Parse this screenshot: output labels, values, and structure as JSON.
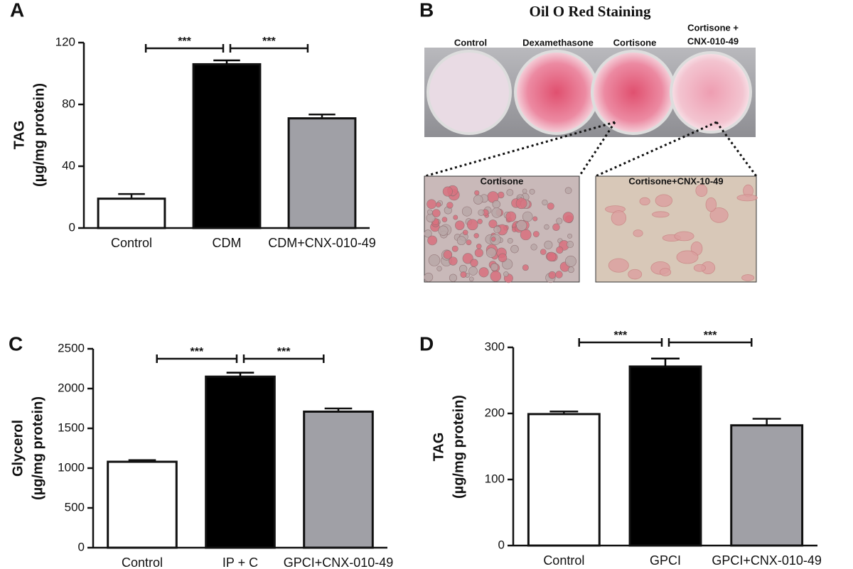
{
  "chart_data": [
    {
      "type": "bar",
      "panel_label": "A",
      "ylabel": [
        "TAG",
        "(µg/mg protein)"
      ],
      "categories": [
        "Control",
        "CDM",
        "CDM+CNX-010-49"
      ],
      "values": [
        19,
        106,
        71
      ],
      "errors": [
        3,
        2.5,
        2.5
      ],
      "colors": [
        "#ffffff",
        "#000000",
        "#a0a0a6"
      ],
      "ylim": [
        0,
        120
      ],
      "yticks": [
        0,
        40,
        80,
        120
      ],
      "significance": [
        {
          "label": "***",
          "pair": [
            0,
            1
          ]
        },
        {
          "label": "***",
          "pair": [
            1,
            2
          ]
        }
      ]
    },
    {
      "type": "bar",
      "panel_label": "C",
      "ylabel": [
        "Glycerol",
        "(µg/mg protein)"
      ],
      "categories": [
        "Control",
        "IP + C",
        "GPCI+CNX-010-49"
      ],
      "values": [
        1080,
        2150,
        1710
      ],
      "errors": [
        20,
        50,
        40
      ],
      "colors": [
        "#ffffff",
        "#000000",
        "#a0a0a6"
      ],
      "ylim": [
        0,
        2500
      ],
      "yticks": [
        0,
        500,
        1000,
        1500,
        2000,
        2500
      ],
      "significance": [
        {
          "label": "***",
          "pair": [
            0,
            1
          ]
        },
        {
          "label": "***",
          "pair": [
            1,
            2
          ]
        }
      ]
    },
    {
      "type": "bar",
      "panel_label": "D",
      "ylabel": [
        "TAG",
        "(µg/mg protein)"
      ],
      "categories": [
        "Control",
        "GPCI",
        "GPCI+CNX-010-49"
      ],
      "values": [
        199,
        271,
        182
      ],
      "errors": [
        4,
        12,
        10
      ],
      "colors": [
        "#ffffff",
        "#000000",
        "#a0a0a6"
      ],
      "ylim": [
        0,
        300
      ],
      "yticks": [
        0,
        100,
        200,
        300
      ],
      "significance": [
        {
          "label": "***",
          "pair": [
            0,
            1
          ]
        },
        {
          "label": "***",
          "pair": [
            1,
            2
          ]
        }
      ]
    }
  ],
  "panel_b": {
    "panel_label": "B",
    "title": "Oil O Red Staining",
    "wells": [
      "Control",
      "Dexamethasone",
      "Cortisone",
      [
        "Cortisone +",
        "CNX-010-49"
      ]
    ],
    "insets": [
      "Cortisone",
      "Cortisone+CNX-10-49"
    ]
  }
}
